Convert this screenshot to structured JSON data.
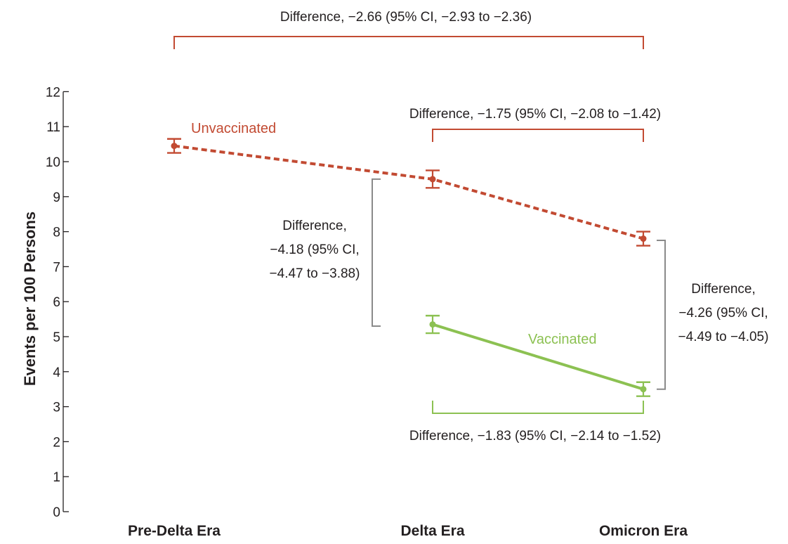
{
  "chart_data": {
    "type": "line",
    "ylabel": "Events per 100 Persons",
    "ylim": [
      0,
      12
    ],
    "yticks": [
      0,
      1,
      2,
      3,
      4,
      5,
      6,
      7,
      8,
      9,
      10,
      11,
      12
    ],
    "categories": [
      "Pre-Delta Era",
      "Delta Era",
      "Omicron Era"
    ],
    "colors": {
      "unvaccinated": "#c24a32",
      "vaccinated": "#8cc152",
      "bracket_gray": "#8a8a8a",
      "axis": "#231f20"
    },
    "series": [
      {
        "name": "Unvaccinated",
        "line_style": "dashed",
        "values": [
          10.45,
          9.5,
          7.8
        ],
        "ci_low": [
          10.25,
          9.25,
          7.6
        ],
        "ci_high": [
          10.65,
          9.75,
          8.0
        ]
      },
      {
        "name": "Vaccinated",
        "line_style": "solid",
        "values": [
          null,
          5.35,
          3.5
        ],
        "ci_low": [
          null,
          5.1,
          3.3
        ],
        "ci_high": [
          null,
          5.6,
          3.7
        ]
      }
    ],
    "annotations": [
      {
        "id": "top",
        "lines": [
          "Difference, −2.66 (95% CI, −2.93 to −2.36)"
        ]
      },
      {
        "id": "unvax-delta-omicron",
        "lines": [
          "Difference, −1.75 (95% CI, −2.08 to −1.42)"
        ]
      },
      {
        "id": "delta-vax-unvax",
        "lines": [
          "Difference,",
          "−4.18 (95% CI,",
          "−4.47 to −3.88)"
        ]
      },
      {
        "id": "omicron-vax-unvax",
        "lines": [
          "Difference,",
          "−4.26 (95% CI,",
          "−4.49 to −4.05)"
        ]
      },
      {
        "id": "vax-delta-omicron",
        "lines": [
          "Difference, −1.83 (95% CI, −2.14 to −1.52)"
        ]
      }
    ]
  }
}
